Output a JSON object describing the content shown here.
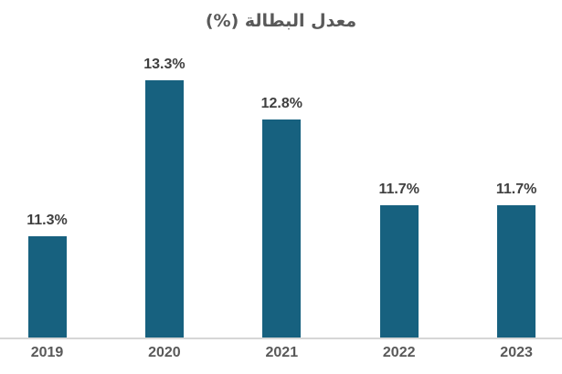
{
  "chart_data": {
    "type": "bar",
    "title": "معدل البطالة (%)",
    "categories": [
      "2019",
      "2020",
      "2021",
      "2022",
      "2023"
    ],
    "values": [
      11.3,
      13.3,
      12.8,
      11.7,
      11.7
    ],
    "value_labels": [
      "11.3%",
      "13.3%",
      "12.8%",
      "11.7%",
      "11.7%"
    ],
    "xlabel": "",
    "ylabel": "",
    "ylim": [
      10,
      13.5
    ],
    "grid": false,
    "legend": false,
    "colors": {
      "bar": "#17617F",
      "value_label": "#404040",
      "axis_label": "#595959",
      "title": "#595959",
      "axis_line": "#D6D6D6",
      "background": "#FFFFFF"
    }
  }
}
